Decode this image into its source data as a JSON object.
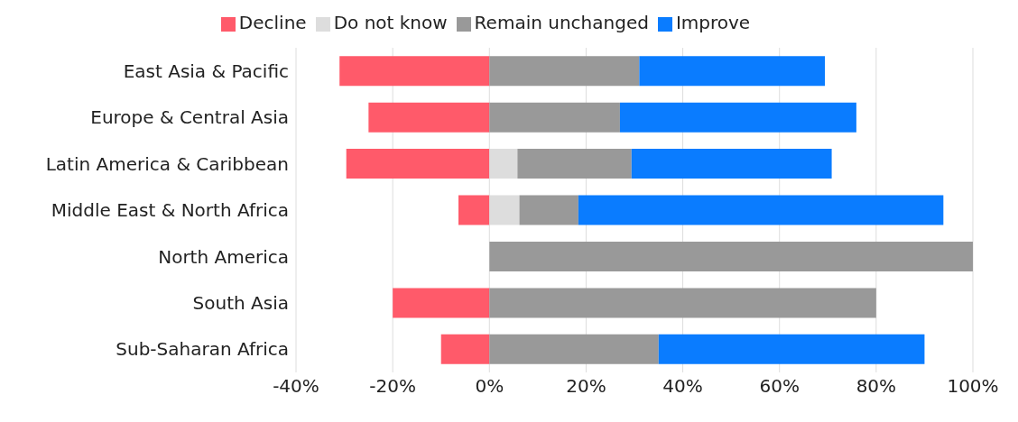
{
  "chart_data": {
    "type": "bar",
    "orientation": "horizontal",
    "stacked": true,
    "categories": [
      "East Asia & Pacific",
      "Europe & Central Asia",
      "Latin America & Caribbean",
      "Middle East & North Africa",
      "North America",
      "South Asia",
      "Sub-Saharan Africa"
    ],
    "series": [
      {
        "name": "Decline",
        "color": "#ff5a6a",
        "values": [
          -31,
          -25,
          -29.6,
          -6.4,
          0,
          -20,
          -10
        ]
      },
      {
        "name": "Do not know",
        "color": "#dddddd",
        "values": [
          0,
          0,
          5.8,
          6.2,
          0,
          0,
          0
        ]
      },
      {
        "name": "Remain unchanged",
        "color": "#999999",
        "values": [
          31,
          27,
          23.6,
          12.2,
          100,
          80,
          35
        ]
      },
      {
        "name": "Improve",
        "color": "#0a7cff",
        "values": [
          38.4,
          48.9,
          41.4,
          75.5,
          0,
          0,
          55
        ]
      }
    ],
    "xlim": [
      -40,
      100
    ],
    "xticks": [
      {
        "value": -40,
        "label": "-40%"
      },
      {
        "value": -20,
        "label": "-20%"
      },
      {
        "value": 0,
        "label": "0%"
      },
      {
        "value": 20,
        "label": "20%"
      },
      {
        "value": 40,
        "label": "40%"
      },
      {
        "value": 60,
        "label": "60%"
      },
      {
        "value": 80,
        "label": "80%"
      },
      {
        "value": 100,
        "label": "100%"
      }
    ],
    "grid": "x",
    "legend": "top"
  }
}
